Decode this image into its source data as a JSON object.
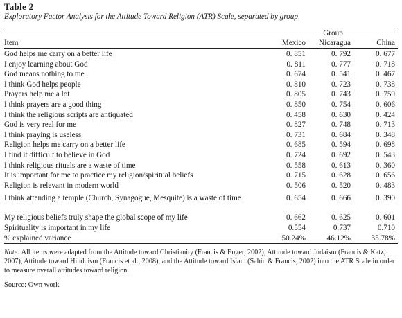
{
  "table_label": "Table 2",
  "caption": "Exploratory Factor Analysis for the Attitude Toward Religion (ATR) Scale, separated by group",
  "header": {
    "group_label": "Group",
    "item_label": "Item",
    "columns": [
      "Mexico",
      "Nicaragua",
      "China"
    ]
  },
  "rows": [
    {
      "item": "God helps me carry on a better life",
      "mexico": "0. 851",
      "nicaragua": "0. 792",
      "china": "0. 677"
    },
    {
      "item": "I enjoy learning about God",
      "mexico": "0. 811",
      "nicaragua": "0. 777",
      "china": "0. 718"
    },
    {
      "item": "God means nothing to me",
      "mexico": "0. 674",
      "nicaragua": "0. 541",
      "china": "0. 467"
    },
    {
      "item": "I think God helps people",
      "mexico": "0. 810",
      "nicaragua": "0. 723",
      "china": "0. 738"
    },
    {
      "item": "Prayers help me a lot",
      "mexico": "0. 805",
      "nicaragua": "0. 743",
      "china": "0. 759"
    },
    {
      "item": "I think prayers are a good thing",
      "mexico": "0. 850",
      "nicaragua": "0. 754",
      "china": "0. 606"
    },
    {
      "item": "I think the religious scripts are antiquated",
      "mexico": "0. 458",
      "nicaragua": "0. 630",
      "china": "0. 424"
    },
    {
      "item": "God is very real for me",
      "mexico": "0. 827",
      "nicaragua": "0. 748",
      "china": "0. 713"
    },
    {
      "item": "I think praying is useless",
      "mexico": "0. 731",
      "nicaragua": "0. 684",
      "china": "0. 348"
    },
    {
      "item": "Religion helps me carry on a better life",
      "mexico": "0. 685",
      "nicaragua": "0. 594",
      "china": "0. 698"
    },
    {
      "item": "I find it difficult to believe in God",
      "mexico": "0. 724",
      "nicaragua": "0. 692",
      "china": "0. 543"
    },
    {
      "item": "I think religious rituals are a waste of time",
      "mexico": "0. 558",
      "nicaragua": "0. 613",
      "china": "0. 360"
    },
    {
      "item": "It is important for me to practice my religion/spiritual beliefs",
      "mexico": "0. 715",
      "nicaragua": "0. 628",
      "china": "0. 656"
    },
    {
      "item": "Religion is relevant in modern world",
      "mexico": "0. 506",
      "nicaragua": "0. 520",
      "china": "0. 483"
    },
    {
      "item": "I think attending a temple (Church, Synagogue, Mesquite) is a waste of time",
      "mexico": "0. 654",
      "nicaragua": "0. 666",
      "china": "0. 390"
    },
    {
      "item": "My religious beliefs truly shape the global scope of my life",
      "mexico": "0. 662",
      "nicaragua": "0. 625",
      "china": "0. 601"
    },
    {
      "item": "Spirituality is important in my life",
      "mexico": "0.554",
      "nicaragua": "0.737",
      "china": "0.710"
    }
  ],
  "total": {
    "item": "% explained variance",
    "mexico": "50.24%",
    "nicaragua": "46.12%",
    "china": "35.78%"
  },
  "note_label": "Note:",
  "note_text": " All items were adapted from the Attitude toward Christianity (Francis & Enger, 2002), Attitude toward Judaism (Francis & Katz, 2007), Attitude toward Hinduism (Francis et al., 2008), and the Attitude toward Islam (Sahin & Francis, 2002) into the ATR Scale in order to measure overall attitudes toward religion.",
  "source": "Source: Own work"
}
